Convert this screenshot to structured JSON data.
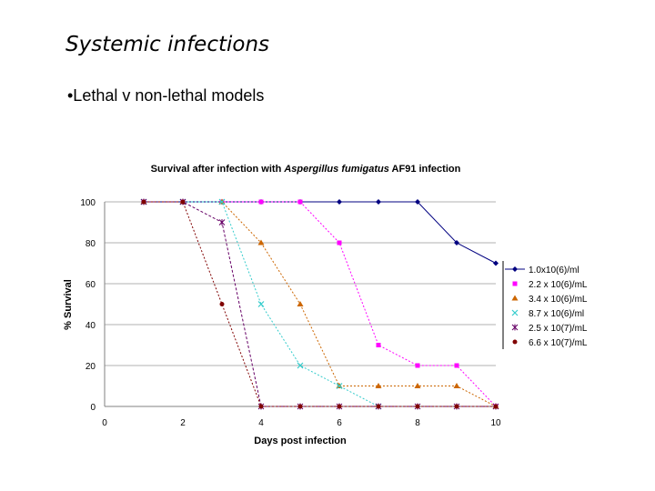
{
  "slide": {
    "title": "Systemic infections",
    "bullet": "•Lethal v non-lethal models"
  },
  "chart_data": {
    "type": "line",
    "title_parts": [
      {
        "text": "Survival after infection with ",
        "italic": false
      },
      {
        "text": "Aspergillus fumigatus",
        "italic": true
      },
      {
        "text": " AF91 infection",
        "italic": false
      }
    ],
    "xlabel": "Days post infection",
    "ylabel": "% Survival",
    "xlim": [
      0,
      10
    ],
    "ylim": [
      0,
      100
    ],
    "xticks": [
      0,
      2,
      4,
      6,
      8,
      10
    ],
    "yticks": [
      0,
      20,
      40,
      60,
      80,
      100
    ],
    "grid": "horizontal",
    "legend_position": "right",
    "series": [
      {
        "name": "1.0x10(6)/ml",
        "color": "#000080",
        "marker": "diamond",
        "dash": "",
        "x": [
          1,
          2,
          3,
          4,
          5,
          6,
          7,
          8,
          9,
          10
        ],
        "y": [
          100,
          100,
          100,
          100,
          100,
          100,
          100,
          100,
          80,
          70
        ]
      },
      {
        "name": "2.2 x 10(6)/mL",
        "color": "#ff00ff",
        "marker": "square",
        "dash": "2,2",
        "x": [
          1,
          2,
          3,
          4,
          5,
          6,
          7,
          8,
          9,
          10
        ],
        "y": [
          100,
          100,
          100,
          100,
          100,
          80,
          30,
          20,
          20,
          0
        ]
      },
      {
        "name": "3.4 x 10(6)/mL",
        "color": "#cc6600",
        "marker": "triangle",
        "dash": "2,2",
        "x": [
          1,
          2,
          3,
          4,
          5,
          6,
          7,
          8,
          9,
          10
        ],
        "y": [
          100,
          100,
          100,
          80,
          50,
          10,
          10,
          10,
          10,
          0
        ]
      },
      {
        "name": "8.7 x 10(6)/ml",
        "color": "#33cccc",
        "marker": "x",
        "dash": "2,2",
        "x": [
          1,
          2,
          3,
          4,
          5,
          6,
          7
        ],
        "y": [
          100,
          100,
          100,
          50,
          20,
          10,
          0
        ]
      },
      {
        "name": "2.5 x 10(7)/mL",
        "color": "#660066",
        "marker": "star",
        "dash": "3,2",
        "x": [
          1,
          2,
          3,
          4,
          5,
          6,
          7,
          8,
          9,
          10
        ],
        "y": [
          100,
          100,
          90,
          0,
          0,
          0,
          0,
          0,
          0,
          0
        ]
      },
      {
        "name": "6.6 x 10(7)/mL",
        "color": "#800000",
        "marker": "circle",
        "dash": "2,2",
        "x": [
          1,
          2,
          3,
          4,
          5,
          6,
          7,
          8,
          9,
          10
        ],
        "y": [
          100,
          100,
          50,
          0,
          0,
          0,
          0,
          0,
          0,
          0
        ]
      }
    ]
  }
}
